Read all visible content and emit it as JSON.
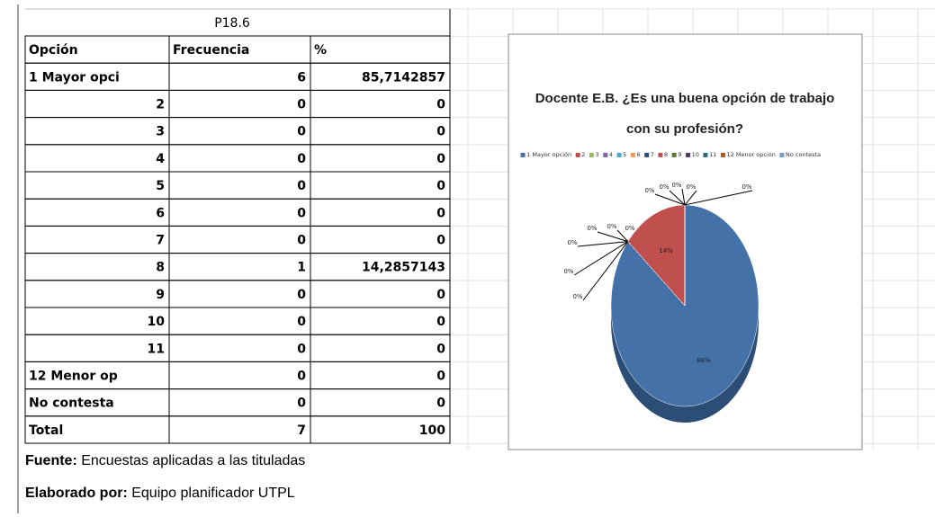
{
  "table": {
    "title": "P18.6",
    "header": [
      "Opción",
      "Frecuencia",
      "%"
    ],
    "rows": [
      [
        "1 Mayor opci",
        "6",
        "85,7142857"
      ],
      [
        "2",
        "0",
        "0"
      ],
      [
        "3",
        "0",
        "0"
      ],
      [
        "4",
        "0",
        "0"
      ],
      [
        "5",
        "0",
        "0"
      ],
      [
        "6",
        "0",
        "0"
      ],
      [
        "7",
        "0",
        "0"
      ],
      [
        "8",
        "1",
        "14,2857143"
      ],
      [
        "9",
        "0",
        "0"
      ],
      [
        "10",
        "0",
        "0"
      ],
      [
        "11",
        "0",
        "0"
      ],
      [
        "12 Menor op",
        "0",
        "0"
      ],
      [
        "No contesta",
        "0",
        "0"
      ],
      [
        "Total",
        "7",
        "100"
      ]
    ]
  },
  "footer": {
    "source_label": "Fuente:",
    "source": "Encuestas aplicadas a las tituladas",
    "author_label": "Elaborado por:",
    "author": "Equipo planificador UTPL"
  },
  "chart_data": {
    "type": "pie",
    "title": "Docente E.B. ¿Es una buena opción de trabajo con su profesión?",
    "categories": [
      "1 Mayor opción",
      "2",
      "3",
      "4",
      "5",
      "6",
      "7",
      "8",
      "9",
      "10",
      "11",
      "12 Menor opción",
      "No contesta"
    ],
    "values": [
      86,
      0,
      0,
      0,
      0,
      0,
      0,
      14,
      0,
      0,
      0,
      0,
      0
    ],
    "value_labels": [
      "86%",
      "0%",
      "0%",
      "0%",
      "0%",
      "0%",
      "0%",
      "14%",
      "0%",
      "0%",
      "0%",
      "0%",
      "0%"
    ],
    "colors": [
      "#4472a8",
      "#c0504d",
      "#9bbb59",
      "#8064a2",
      "#4bacc6",
      "#f79646",
      "#2c4d75",
      "#c0504d",
      "#5f7530",
      "#4d3b62",
      "#276a7c",
      "#b65708",
      "#729aca"
    ]
  }
}
